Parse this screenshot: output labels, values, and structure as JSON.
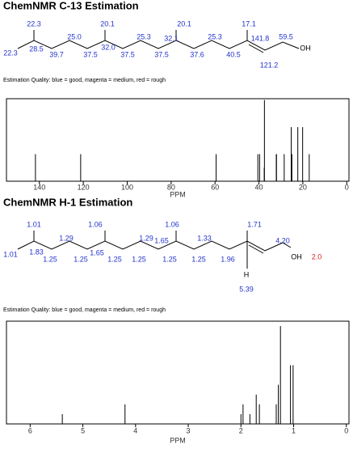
{
  "chart_data": [
    {
      "type": "stem",
      "title": "ChemNMR C-13 Estimation",
      "xlabel": "PPM",
      "xlim": [
        155,
        -1
      ],
      "xticks": [
        140,
        120,
        100,
        80,
        60,
        40,
        20,
        0
      ],
      "ylim": [
        0,
        3.05
      ],
      "color": "#000000",
      "x": [
        141.8,
        121.2,
        59.5,
        40.5,
        39.7,
        37.6,
        37.5,
        32.1,
        32.0,
        28.5,
        25.3,
        25.0,
        22.3,
        20.1,
        17.1
      ],
      "values": [
        1,
        1,
        1,
        1,
        1,
        0.5,
        3,
        1,
        1,
        1,
        2,
        1,
        2,
        2,
        1
      ],
      "structure": {
        "labels": [
          "22.3",
          "22.3",
          "28.5",
          "39.7",
          "25.0",
          "37.5",
          "20.1",
          "32.0",
          "37.5",
          "25.3",
          "37.5",
          "32.1",
          "20.1",
          "37.6",
          "25.3",
          "40.5",
          "17.1",
          "141.8",
          "121.2",
          "59.5",
          "OH"
        ],
        "colors": [
          "#2233cc",
          "#2233cc",
          "#2233cc",
          "#2233cc",
          "#2233cc",
          "#2233cc",
          "#2233cc",
          "#2233cc",
          "#2233cc",
          "#2233cc",
          "#2233cc",
          "#2233cc",
          "#2233cc",
          "#2233cc",
          "#2233cc",
          "#2233cc",
          "#2233cc",
          "#2233cc",
          "#2233cc",
          "#2233cc",
          "#000000"
        ]
      },
      "quality": "Estimation Quality: blue = good, magenta = medium, red = rough"
    },
    {
      "type": "stem",
      "title": "ChemNMR H-1 Estimation",
      "xlabel": "PPM",
      "xlim": [
        6.45,
        -0.05
      ],
      "xticks": [
        6,
        5,
        4,
        3,
        2,
        1,
        0
      ],
      "ylim": [
        0,
        10.5
      ],
      "color": "#000000",
      "x": [
        5.39,
        4.2,
        2.0,
        1.96,
        1.83,
        1.71,
        1.65,
        1.33,
        1.29,
        1.25,
        1.06,
        1.01
      ],
      "values": [
        1,
        2,
        1,
        2,
        1,
        3,
        2,
        2,
        4,
        10,
        6,
        6
      ],
      "structure": {
        "labels": [
          "1.01",
          "1.01",
          "1.83",
          "1.25",
          "1.29",
          "1.25",
          "1.06",
          "1.65",
          "1.25",
          "1.25",
          "1.29",
          "1.06",
          "1.65",
          "1.25",
          "1.33",
          "1.25",
          "1.96",
          "1.71",
          "4.20",
          "H",
          "5.39",
          "OH",
          "2.0"
        ],
        "colors": [
          "#2233cc",
          "#2233cc",
          "#2233cc",
          "#2233cc",
          "#2233cc",
          "#2233cc",
          "#2233cc",
          "#2233cc",
          "#2233cc",
          "#2233cc",
          "#2233cc",
          "#2233cc",
          "#2233cc",
          "#2233cc",
          "#2233cc",
          "#2233cc",
          "#2233cc",
          "#2233cc",
          "#2233cc",
          "#000000",
          "#2233cc",
          "#000000",
          "#dd2222"
        ]
      },
      "quality": "Estimation Quality: blue = good, magenta = medium, red = rough"
    }
  ]
}
